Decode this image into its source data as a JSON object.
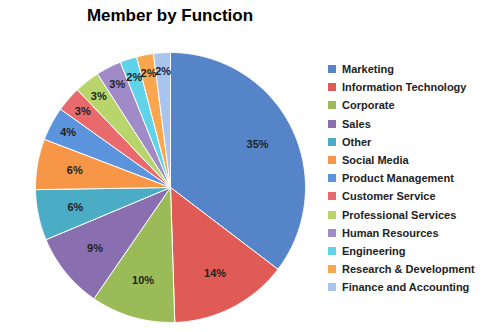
{
  "chart_data": {
    "type": "pie",
    "title": "Member by Function",
    "categories": [
      "Marketing",
      "Information Technology",
      "Corporate",
      "Sales",
      "Other",
      "Social Media",
      "Product Management",
      "Customer Service",
      "Professional Services",
      "Human Resources",
      "Engineering",
      "Research & Development",
      "Finance and Accounting"
    ],
    "values": [
      35,
      14,
      10,
      9,
      6,
      6,
      4,
      3,
      3,
      3,
      2,
      2,
      2
    ],
    "value_labels": [
      "35%",
      "14%",
      "10%",
      "9%",
      "6%",
      "6%",
      "4%",
      "3%",
      "3%",
      "3%",
      "2%",
      "2%",
      "2%"
    ],
    "colors": [
      "#5585c8",
      "#e05a56",
      "#9bbb59",
      "#8a6fb0",
      "#4bacc6",
      "#f79646",
      "#5b93dd",
      "#e86a6d",
      "#b7d56a",
      "#a08bc8",
      "#5fd3ea",
      "#f9a64f",
      "#a9c5ee"
    ],
    "data_labels": true
  }
}
